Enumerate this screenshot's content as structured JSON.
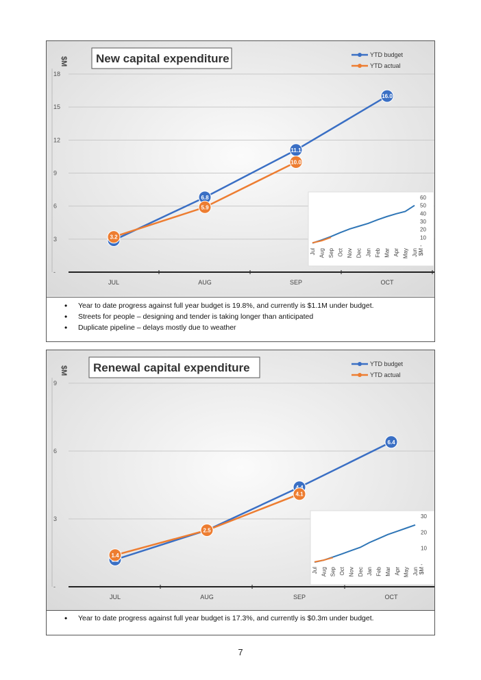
{
  "page_number": "7",
  "charts": [
    {
      "title": "New capital expenditure",
      "ylabel": "$M",
      "legend": [
        "YTD budget",
        "YTD actual"
      ],
      "notes": [
        "Year to date progress against full year budget is 19.8%, and currently is $1.1M under budget.",
        "Streets for people – designing and tender is taking longer than anticipated",
        "Duplicate pipeline – delays mostly due to weather"
      ]
    },
    {
      "title": "Renewal capital expenditure",
      "ylabel": "$M",
      "legend": [
        "YTD budget",
        "YTD actual"
      ],
      "notes": [
        "Year to date progress against full year budget is 17.3%, and currently is $0.3m under budget."
      ]
    }
  ],
  "chart_data": [
    {
      "type": "line",
      "title": "New capital expenditure",
      "ylabel": "$M",
      "categories": [
        "JUL",
        "AUG",
        "SEP",
        "OCT"
      ],
      "yticks": [
        "-",
        "3",
        "6",
        "9",
        "12",
        "15",
        "18"
      ],
      "ylim": [
        0,
        18
      ],
      "legend_position": "top-right",
      "series": [
        {
          "name": "YTD budget",
          "color": "#3a6fc4",
          "values": [
            2.9,
            6.8,
            11.1,
            16.0
          ],
          "labels": [
            "2.9",
            "6.8",
            "11.1",
            "16.0"
          ]
        },
        {
          "name": "YTD actual",
          "color": "#ed7d31",
          "values": [
            3.2,
            5.9,
            10.0,
            null
          ],
          "labels": [
            "3.2",
            "5.9",
            "10.0",
            ""
          ]
        }
      ],
      "inset": {
        "type": "line",
        "categories": [
          "Jul",
          "Aug",
          "Sep",
          "Oct",
          "Nov",
          "Dec",
          "Jan",
          "Feb",
          "Mar",
          "Apr",
          "May",
          "Jun"
        ],
        "yticks": [
          "-",
          "10",
          "20",
          "30",
          "40",
          "50",
          "60"
        ],
        "ylim": [
          0,
          60
        ],
        "ylabel": "$M",
        "series": [
          {
            "name": "YTD budget",
            "color": "#2e75b6",
            "values": [
              2.9,
              6.8,
              11.1,
              16.0,
              20.5,
              24.0,
              27.5,
              32.0,
              36.0,
              39.5,
              42.5,
              50.0
            ]
          },
          {
            "name": "YTD actual",
            "color": "#ed7d31",
            "values": [
              3.2,
              5.9,
              10.0
            ]
          }
        ]
      }
    },
    {
      "type": "line",
      "title": "Renewal capital expenditure",
      "ylabel": "$M",
      "categories": [
        "JUL",
        "AUG",
        "SEP",
        "OCT"
      ],
      "yticks": [
        "-",
        "3",
        "6",
        "9"
      ],
      "ylim": [
        0,
        9
      ],
      "legend_position": "top-right",
      "series": [
        {
          "name": "YTD budget",
          "color": "#3a6fc4",
          "values": [
            1.2,
            2.5,
            4.4,
            6.4
          ],
          "labels": [
            "1.2",
            "2.5",
            "4.4",
            "6.4"
          ]
        },
        {
          "name": "YTD actual",
          "color": "#ed7d31",
          "values": [
            1.4,
            2.5,
            4.1,
            null
          ],
          "labels": [
            "1.4",
            "2.5",
            "4.1",
            ""
          ]
        }
      ],
      "inset": {
        "type": "line",
        "categories": [
          "Jul",
          "Aug",
          "Sep",
          "Oct",
          "Nov",
          "Dec",
          "Jan",
          "Feb",
          "Mar",
          "Apr",
          "May",
          "Jun"
        ],
        "yticks": [
          "-",
          "10",
          "20",
          "30"
        ],
        "ylim": [
          0,
          30
        ],
        "ylabel": "$M",
        "series": [
          {
            "name": "YTD budget",
            "color": "#2e75b6",
            "values": [
              1.2,
              2.5,
              4.4,
              6.4,
              8.5,
              10.5,
              13.5,
              16.0,
              18.5,
              20.5,
              22.5,
              24.5
            ]
          },
          {
            "name": "YTD actual",
            "color": "#ed7d31",
            "values": [
              1.4,
              2.5,
              4.1
            ]
          }
        ]
      }
    }
  ]
}
